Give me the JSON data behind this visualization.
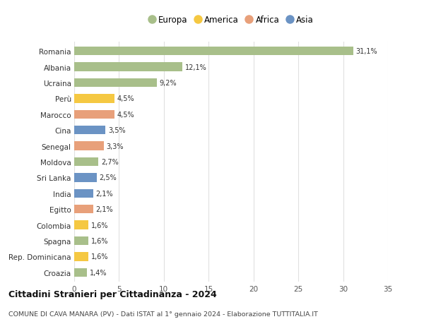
{
  "countries": [
    "Romania",
    "Albania",
    "Ucraina",
    "Perù",
    "Marocco",
    "Cina",
    "Senegal",
    "Moldova",
    "Sri Lanka",
    "India",
    "Egitto",
    "Colombia",
    "Spagna",
    "Rep. Dominicana",
    "Croazia"
  ],
  "values": [
    31.1,
    12.1,
    9.2,
    4.5,
    4.5,
    3.5,
    3.3,
    2.7,
    2.5,
    2.1,
    2.1,
    1.6,
    1.6,
    1.6,
    1.4
  ],
  "labels": [
    "31,1%",
    "12,1%",
    "9,2%",
    "4,5%",
    "4,5%",
    "3,5%",
    "3,3%",
    "2,7%",
    "2,5%",
    "2,1%",
    "2,1%",
    "1,6%",
    "1,6%",
    "1,6%",
    "1,4%"
  ],
  "colors": [
    "#a8bf8a",
    "#a8bf8a",
    "#a8bf8a",
    "#f5c842",
    "#e8a07a",
    "#6b93c4",
    "#e8a07a",
    "#a8bf8a",
    "#6b93c4",
    "#6b93c4",
    "#e8a07a",
    "#f5c842",
    "#a8bf8a",
    "#f5c842",
    "#a8bf8a"
  ],
  "legend_labels": [
    "Europa",
    "America",
    "Africa",
    "Asia"
  ],
  "legend_colors": [
    "#a8bf8a",
    "#f5c842",
    "#e8a07a",
    "#6b93c4"
  ],
  "title": "Cittadini Stranieri per Cittadinanza - 2024",
  "subtitle": "COMUNE DI CAVA MANARA (PV) - Dati ISTAT al 1° gennaio 2024 - Elaborazione TUTTITALIA.IT",
  "xlim": [
    0,
    35
  ],
  "xticks": [
    0,
    5,
    10,
    15,
    20,
    25,
    30,
    35
  ],
  "bg_color": "#ffffff",
  "grid_color": "#e0e0e0",
  "bar_height": 0.55
}
